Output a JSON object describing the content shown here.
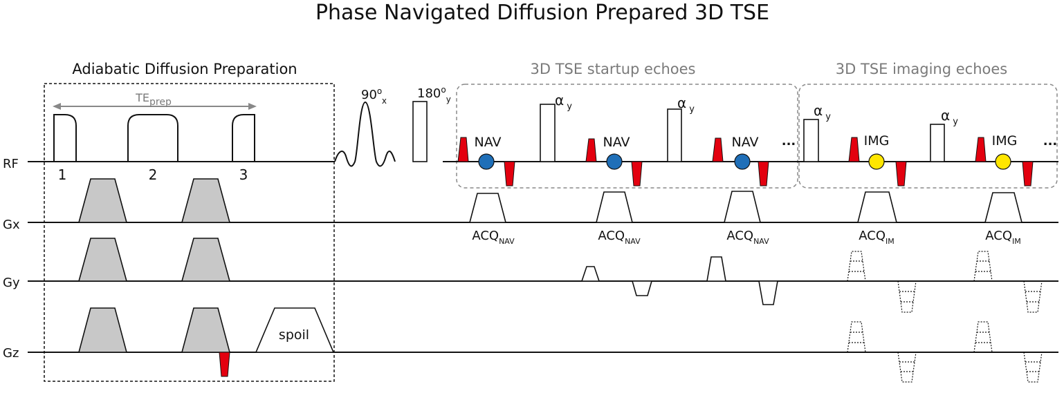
{
  "title": "Phase Navigated Diffusion Prepared 3D TSE",
  "sections": {
    "prep": "Adiabatic Diffusion Preparation",
    "startup": "3D TSE startup echoes",
    "imaging": "3D TSE imaging echoes"
  },
  "te_prep": {
    "main": "TE",
    "sub": "prep"
  },
  "axes": [
    "RF",
    "Gx",
    "Gy",
    "Gz"
  ],
  "pulse_numbers": [
    "1",
    "2",
    "3"
  ],
  "rf_labels": {
    "p90": {
      "main": "90",
      "sup": "o",
      "sub": "x"
    },
    "p180": {
      "main": "180",
      "sup": "o",
      "sub": "y"
    },
    "alpha": {
      "main": "α",
      "sub": "y"
    }
  },
  "nav_label": "NAV",
  "img_label": "IMG",
  "ellipsis": "...",
  "acq_nav": {
    "main": "ACQ",
    "sub": "NAV"
  },
  "acq_im": {
    "main": "ACQ",
    "sub": "IM"
  },
  "spoil": "spoil",
  "colors": {
    "nav": "#1f6fb8",
    "img": "#ffe600",
    "red": "#e3000f",
    "gray_box": "#888888",
    "grad_fill": "#c8c8c8"
  }
}
